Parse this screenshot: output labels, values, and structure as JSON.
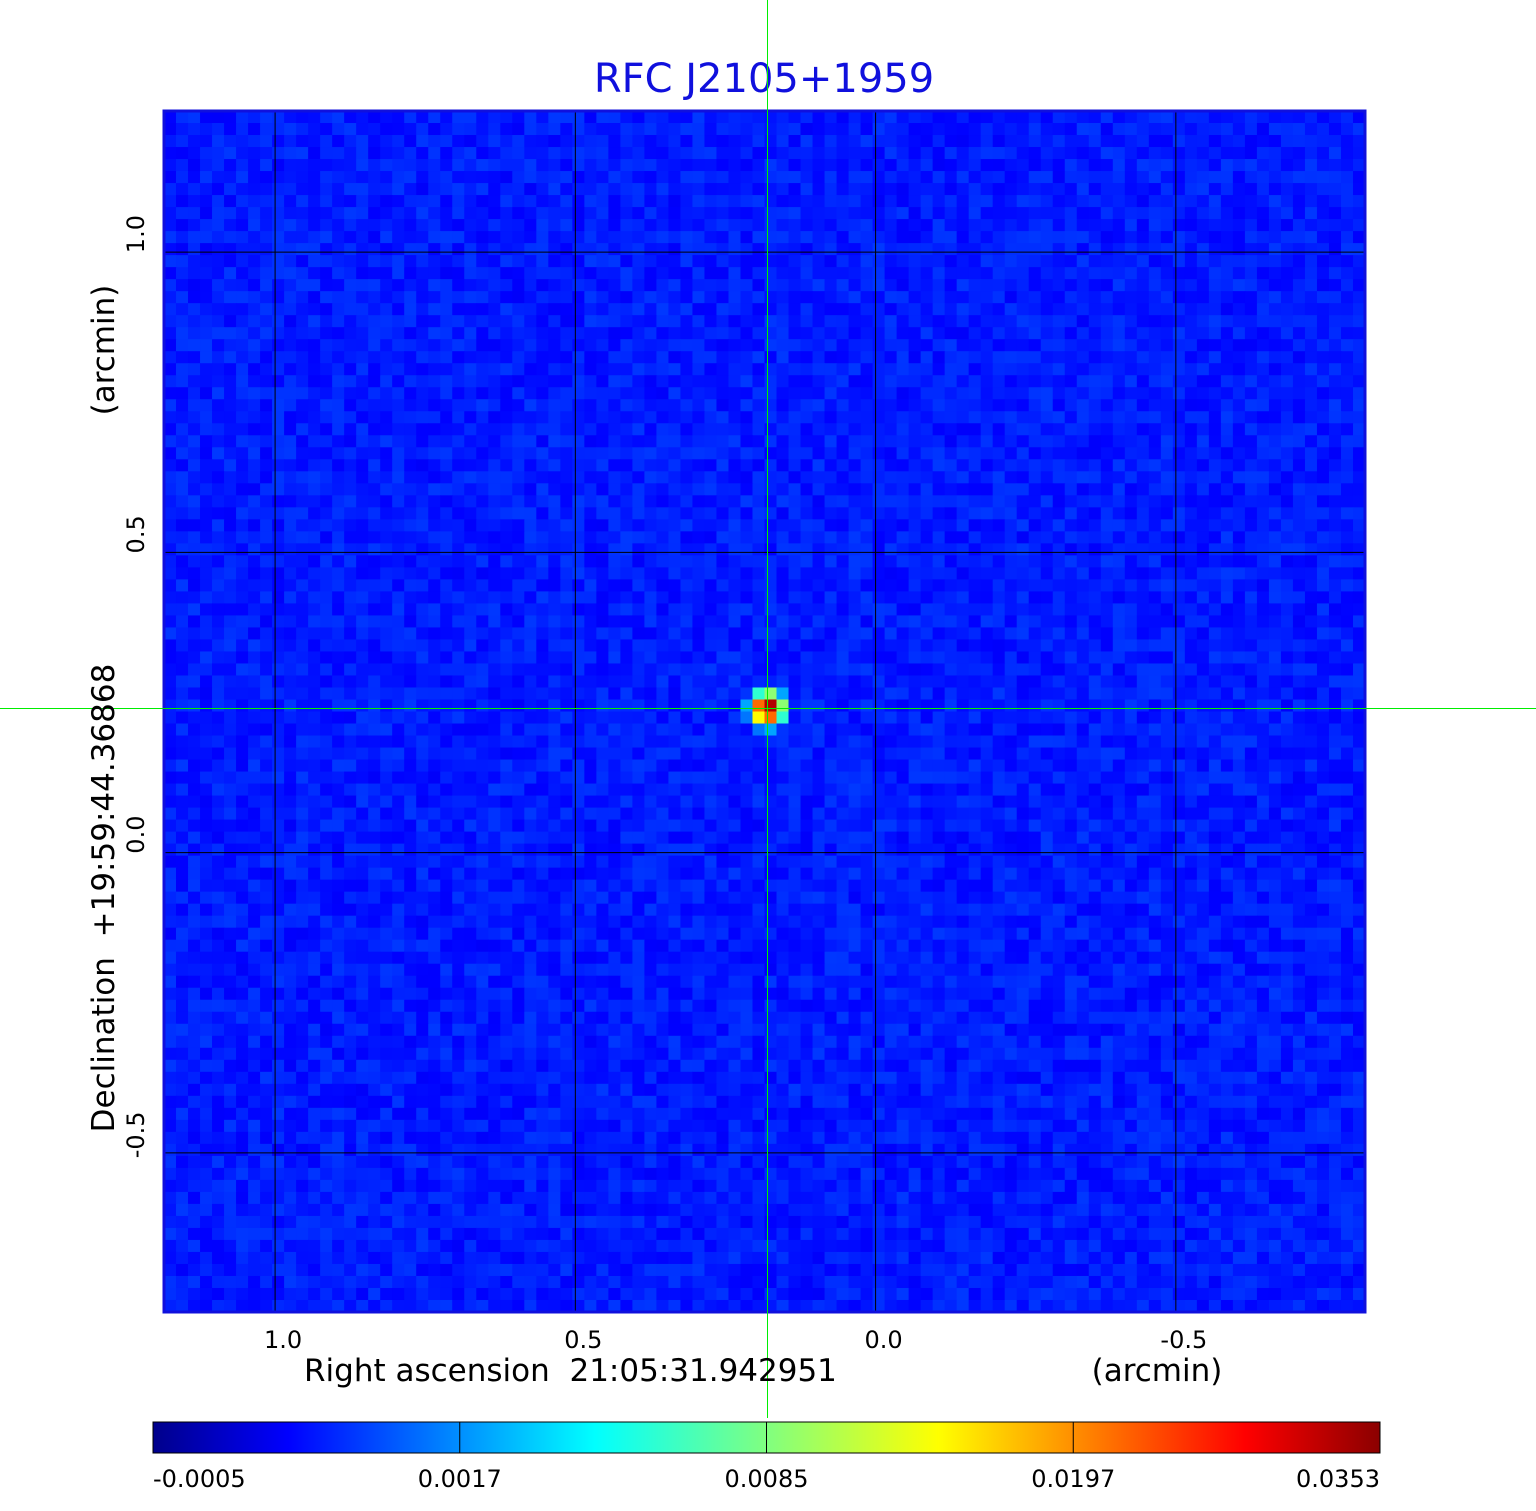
{
  "chart_data": {
    "type": "heatmap",
    "title": "RFC J2105+1959",
    "xlabel": "Right ascension  21:05:31.942951",
    "xunit": "(arcmin)",
    "ylabel": "Declination  +19:59:44.36868",
    "yunit": "(arcmin)",
    "x_axis_inverted": true,
    "xlim": [
      1.185,
      -0.815
    ],
    "ylim": [
      -0.765,
      1.235
    ],
    "x_ticks": [
      {
        "value": 1.0,
        "label": "1.0"
      },
      {
        "value": 0.5,
        "label": "0.5"
      },
      {
        "value": 0.0,
        "label": "0.0"
      },
      {
        "value": -0.5,
        "label": "-0.5"
      }
    ],
    "y_ticks": [
      {
        "value": 1.0,
        "label": "1.0"
      },
      {
        "value": 0.5,
        "label": "0.5"
      },
      {
        "value": 0.0,
        "label": "0.0"
      },
      {
        "value": -0.5,
        "label": "-0.5"
      }
    ],
    "grid": true,
    "crosshair": {
      "x": 0.18,
      "y": 0.24
    },
    "source": {
      "x": 0.18,
      "y": 0.24,
      "peak": 0.0353
    },
    "background_level": 0.0,
    "colormap": "jet",
    "colorbar": {
      "orientation": "horizontal",
      "ticks": [
        "-0.0005",
        "0.0017",
        "0.0085",
        "0.0197",
        "0.0353"
      ]
    },
    "colors": {
      "title": "#1010dd",
      "frame": "#1010dd",
      "crosshair": "#00ee00",
      "grid": "#000000"
    }
  }
}
